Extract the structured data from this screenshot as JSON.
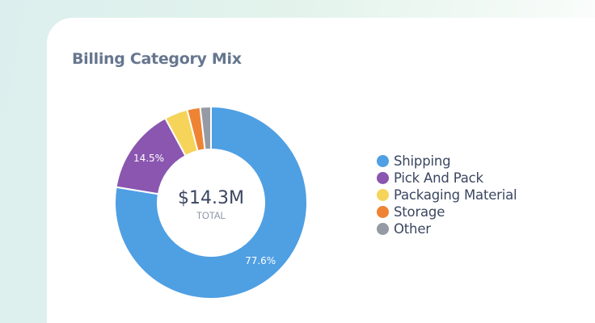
{
  "chart_data": {
    "type": "pie",
    "title": "Billing Category Mix",
    "center_value": "$14.3M",
    "center_label": "TOTAL",
    "legend_position": "right",
    "slices": [
      {
        "name": "Shipping",
        "value": 77.6,
        "label": "77.6%",
        "color": "#4f9fe3"
      },
      {
        "name": "Pick And Pack",
        "value": 14.5,
        "label": "14.5%",
        "color": "#8a56b0"
      },
      {
        "name": "Packaging Material",
        "value": 3.9,
        "label": "",
        "color": "#f6d45a"
      },
      {
        "name": "Storage",
        "value": 2.2,
        "label": "",
        "color": "#ee8433"
      },
      {
        "name": "Other",
        "value": 1.8,
        "label": "",
        "color": "#959aa5"
      }
    ]
  }
}
